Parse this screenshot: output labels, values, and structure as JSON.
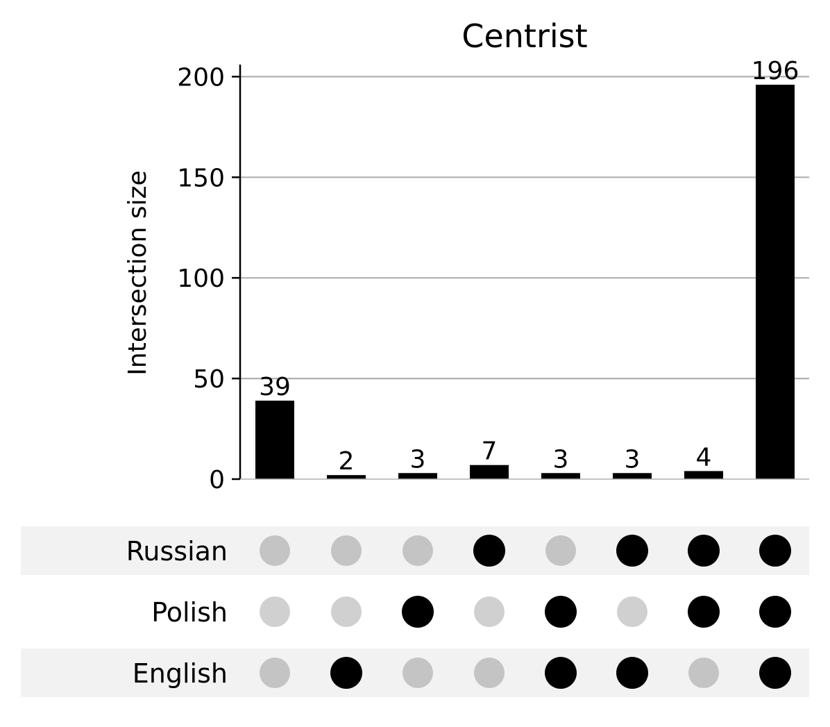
{
  "chart_data": {
    "type": "bar",
    "title": "Centrist",
    "ylabel": "Intersection size",
    "ylim": [
      0,
      206
    ],
    "yticks": [
      0,
      50,
      100,
      150,
      200
    ],
    "grid": true,
    "sets": [
      "Russian",
      "Polish",
      "English"
    ],
    "intersections": [
      {
        "value": 39,
        "members": []
      },
      {
        "value": 2,
        "members": [
          "English"
        ]
      },
      {
        "value": 3,
        "members": [
          "Polish"
        ]
      },
      {
        "value": 7,
        "members": [
          "Russian"
        ]
      },
      {
        "value": 3,
        "members": [
          "Polish",
          "English"
        ]
      },
      {
        "value": 3,
        "members": [
          "Russian",
          "English"
        ]
      },
      {
        "value": 4,
        "members": [
          "Russian",
          "Polish"
        ]
      },
      {
        "value": 196,
        "members": [
          "Russian",
          "Polish",
          "English"
        ]
      }
    ],
    "colors": {
      "bar": "#000000",
      "active_dot": "#000000",
      "inactive_dot_shaded_row": "#c4c4c4",
      "inactive_dot_plain_row": "#d0d0d0",
      "row_shade": "#f2f2f2",
      "grid": "#b0b0b0"
    }
  }
}
